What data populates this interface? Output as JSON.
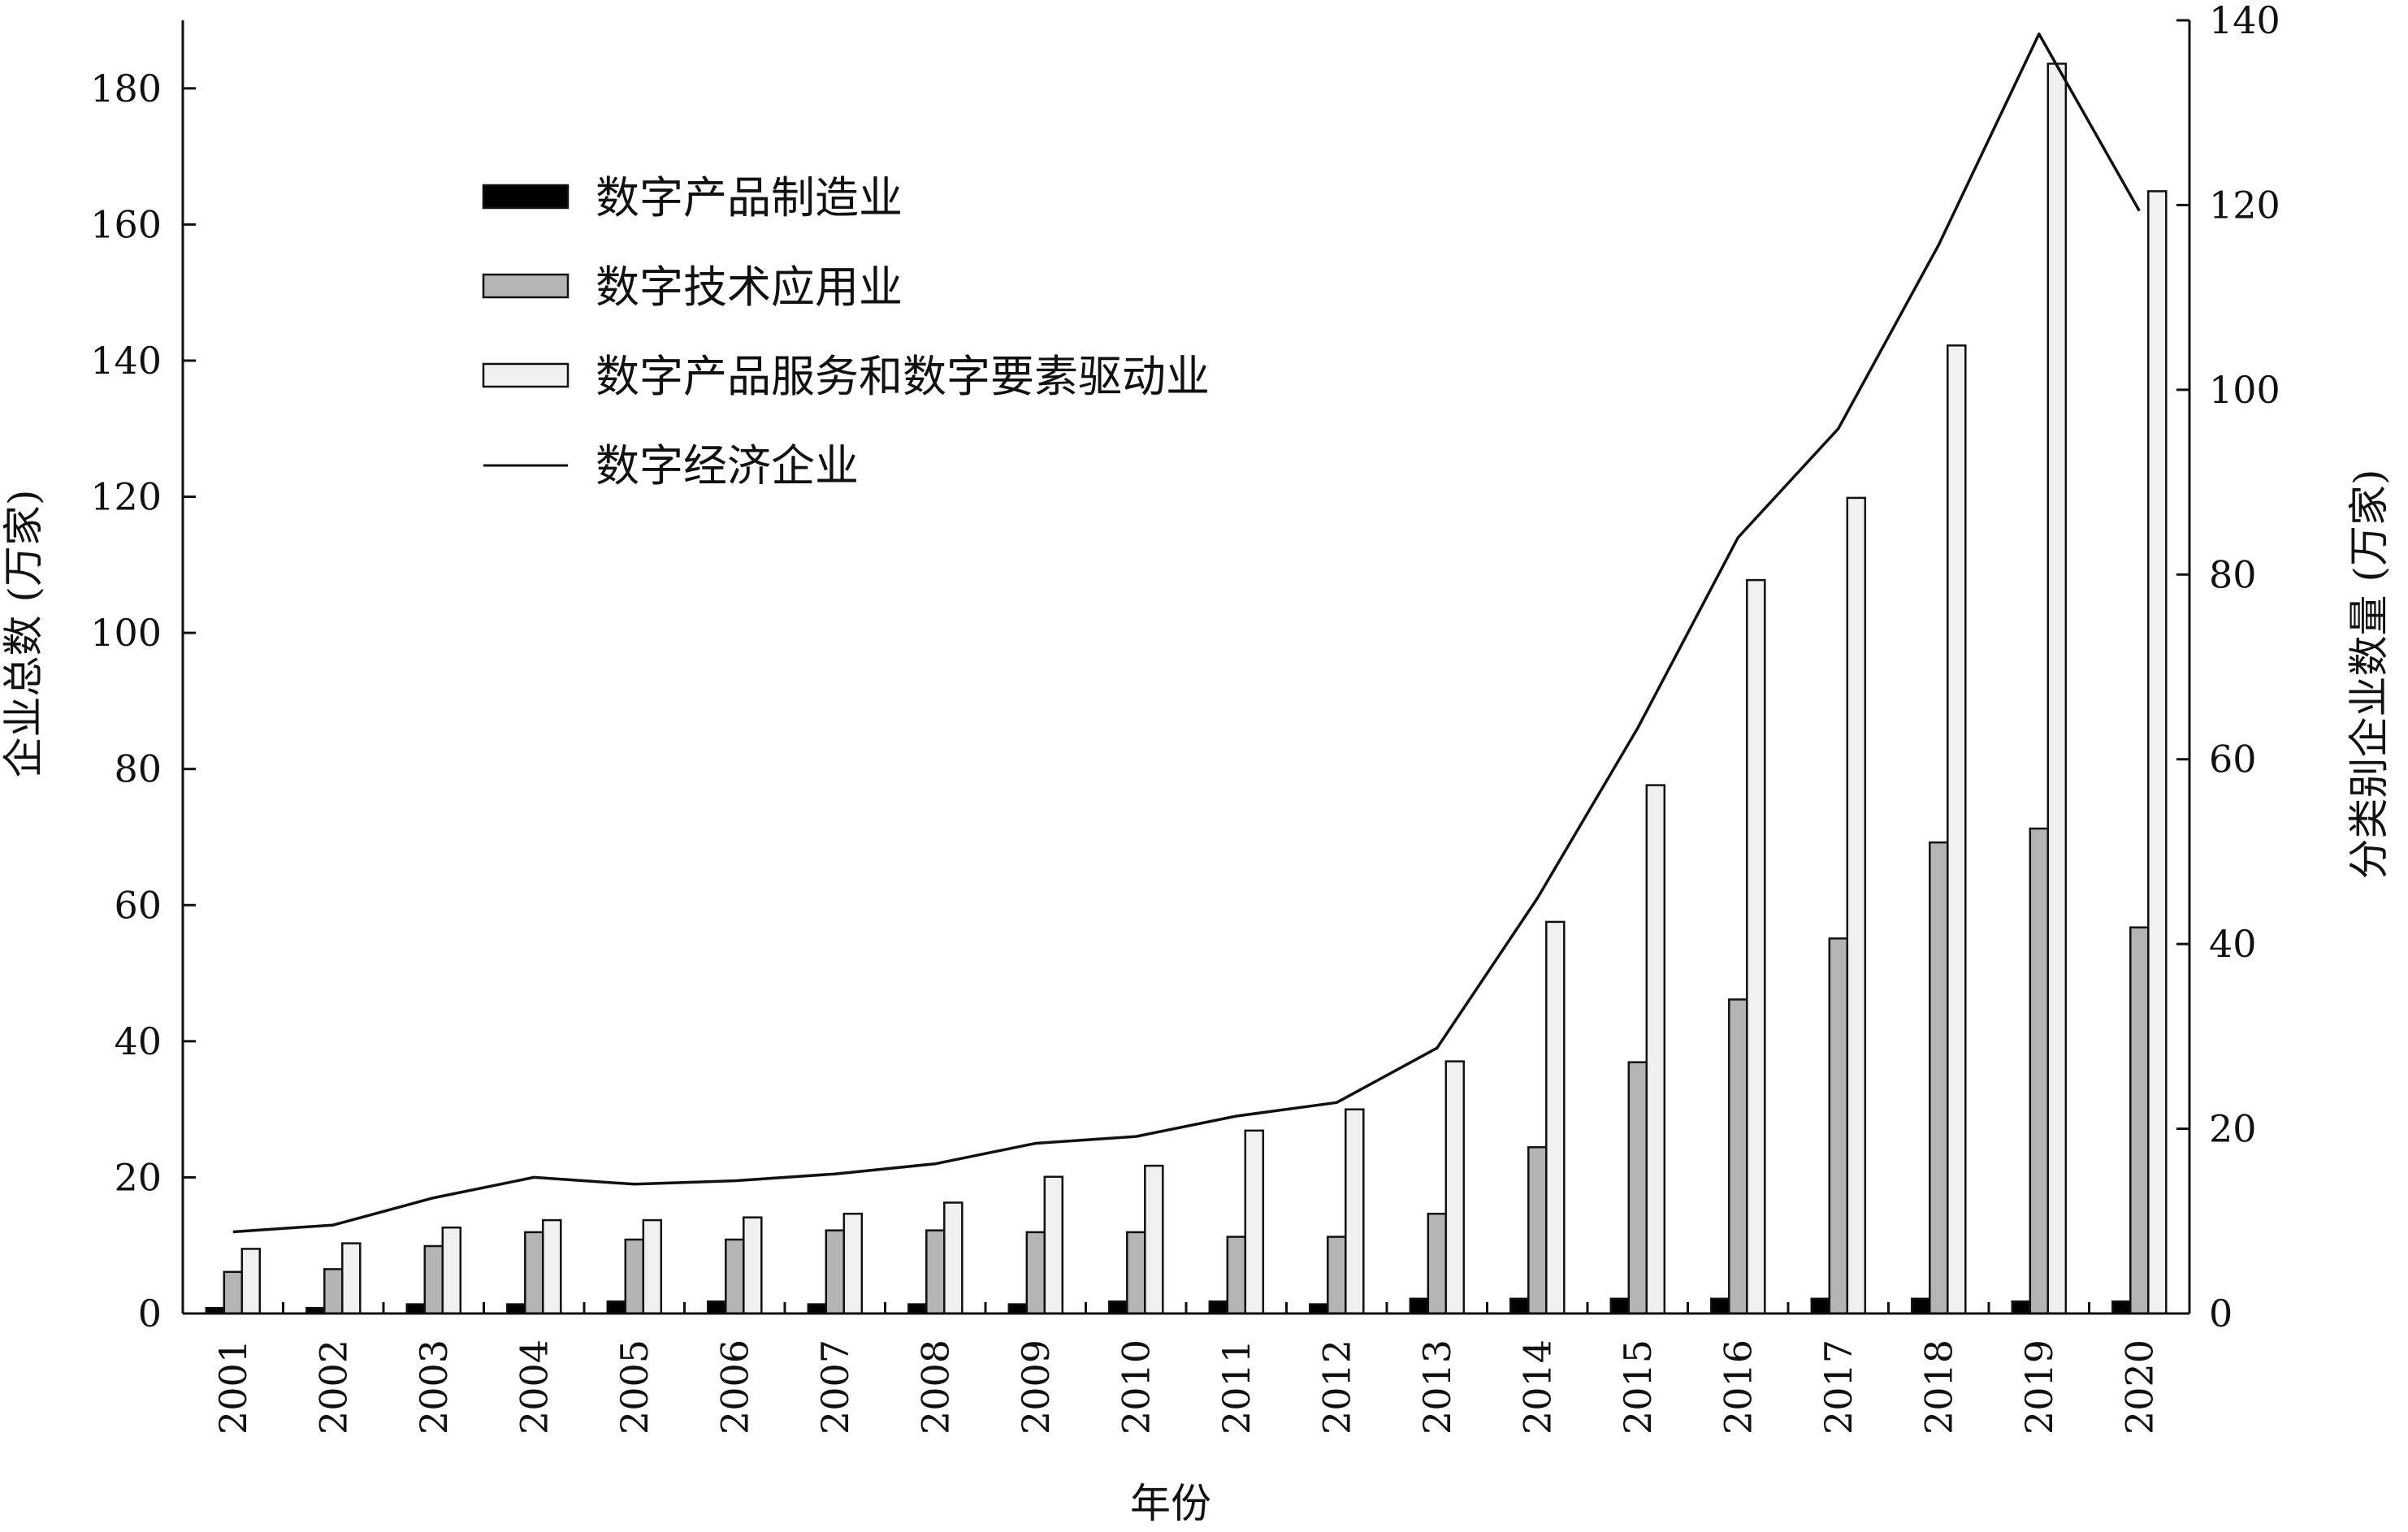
{
  "chart_data": {
    "type": "bar",
    "xlabel": "年份",
    "ylabel_left": "企业总数 (万家)",
    "ylabel_right": "分类别企业数量 (万家)",
    "ylim_left": [
      0,
      190
    ],
    "yticks_left": [
      0,
      20,
      40,
      60,
      80,
      100,
      120,
      140,
      160,
      180
    ],
    "ylim_right": [
      0,
      140
    ],
    "yticks_right": [
      0,
      20,
      40,
      60,
      80,
      100,
      120,
      140
    ],
    "categories": [
      "2001",
      "2002",
      "2003",
      "2004",
      "2005",
      "2006",
      "2007",
      "2008",
      "2009",
      "2010",
      "2011",
      "2012",
      "2013",
      "2014",
      "2015",
      "2016",
      "2017",
      "2018",
      "2019",
      "2020"
    ],
    "series": [
      {
        "name": "数字产品制造业",
        "kind": "bar",
        "axis": "right",
        "color": "#000000",
        "values": [
          0.6,
          0.6,
          1.0,
          1.0,
          1.3,
          1.3,
          1.0,
          1.0,
          1.0,
          1.3,
          1.3,
          1.0,
          1.6,
          1.6,
          1.6,
          1.6,
          1.6,
          1.6,
          1.3,
          1.3
        ]
      },
      {
        "name": "数字技术应用业",
        "kind": "bar",
        "axis": "right",
        "color": "#b4b4b4",
        "values": [
          4.5,
          4.8,
          7.3,
          8.8,
          8.0,
          8.0,
          9.0,
          9.0,
          8.8,
          8.8,
          8.3,
          8.3,
          10.8,
          18.0,
          27.2,
          34.0,
          40.6,
          51.0,
          52.5,
          41.8
        ]
      },
      {
        "name": "数字产品服务和数字要素驱动业",
        "kind": "bar",
        "axis": "right",
        "color": "#f0f0f0",
        "values": [
          7.0,
          7.6,
          9.3,
          10.1,
          10.1,
          10.4,
          10.8,
          12.0,
          14.8,
          16.0,
          19.8,
          22.1,
          27.3,
          42.4,
          57.2,
          79.4,
          88.3,
          104.8,
          135.3,
          121.5
        ]
      },
      {
        "name": "数字经济企业",
        "kind": "line",
        "axis": "left",
        "color": "#111111",
        "values": [
          12,
          13,
          17,
          20,
          19,
          19.5,
          20.5,
          22,
          25,
          26,
          29,
          31,
          39,
          61,
          86,
          114,
          130,
          157,
          188,
          162
        ]
      }
    ],
    "legend_placement": "top-left",
    "grid": false
  }
}
